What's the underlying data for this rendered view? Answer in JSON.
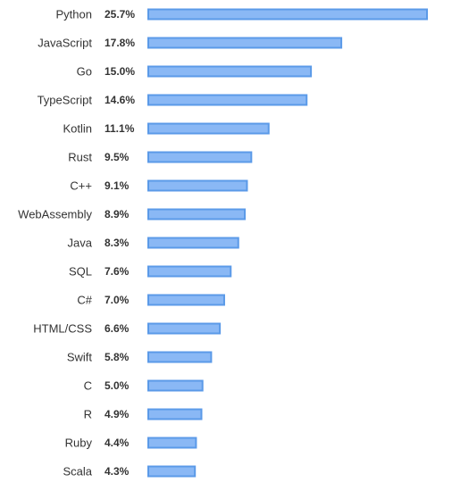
{
  "chart_data": {
    "type": "bar",
    "orientation": "horizontal",
    "title": "",
    "xlabel": "",
    "ylabel": "",
    "categories": [
      "Python",
      "JavaScript",
      "Go",
      "TypeScript",
      "Kotlin",
      "Rust",
      "C++",
      "WebAssembly",
      "Java",
      "SQL",
      "C#",
      "HTML/CSS",
      "Swift",
      "C",
      "R",
      "Ruby",
      "Scala"
    ],
    "values": [
      25.7,
      17.8,
      15.0,
      14.6,
      11.1,
      9.5,
      9.1,
      8.9,
      8.3,
      7.6,
      7.0,
      6.6,
      5.8,
      5.0,
      4.9,
      4.4,
      4.3
    ],
    "value_labels": [
      "25.7%",
      "17.8%",
      "15.0%",
      "14.6%",
      "11.1%",
      "9.5%",
      "9.1%",
      "8.9%",
      "8.3%",
      "7.6%",
      "7.0%",
      "6.6%",
      "5.8%",
      "5.0%",
      "4.9%",
      "4.4%",
      "4.3%"
    ],
    "xlim": [
      0,
      25.7
    ],
    "grid": false,
    "legend": "none",
    "bar_fill": "#8ab8f5",
    "bar_stroke": "#5b9ae8"
  }
}
